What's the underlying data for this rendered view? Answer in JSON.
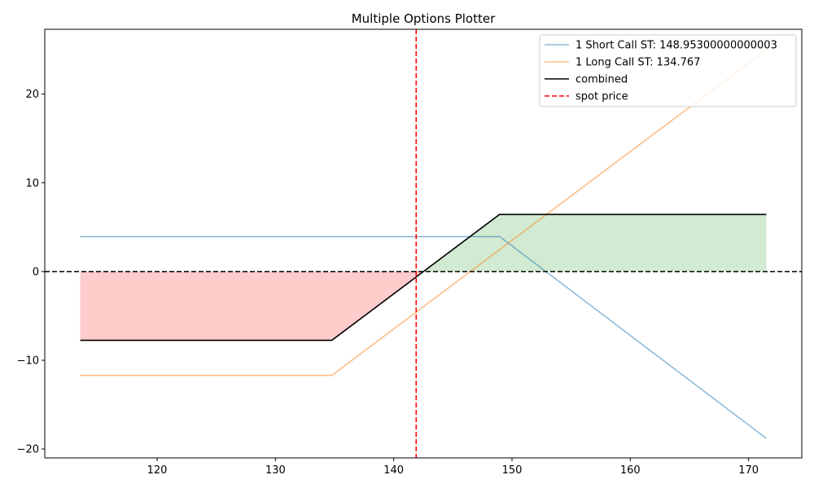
{
  "chart_data": {
    "type": "line",
    "title": "Multiple Options Plotter",
    "xlabel": "",
    "ylabel": "",
    "xlim": [
      110.5,
      174.5
    ],
    "ylim": [
      -21,
      27.3
    ],
    "x_ticks": [
      120,
      130,
      140,
      150,
      160,
      170
    ],
    "y_ticks": [
      -20,
      -10,
      0,
      10,
      20
    ],
    "grid": false,
    "legend_position": "top-right",
    "series": [
      {
        "name": "1 Short Call ST: 148.95300000000003",
        "color": "#1f77b4",
        "opacity": 0.5,
        "dash": "solid",
        "x": [
          113.5,
          148.953,
          171.5
        ],
        "y": [
          3.95,
          3.95,
          -18.8
        ]
      },
      {
        "name": "1 Long Call ST: 134.767",
        "color": "#ff7f0e",
        "opacity": 0.5,
        "dash": "solid",
        "x": [
          113.5,
          134.767,
          171.5
        ],
        "y": [
          -11.7,
          -11.7,
          25.0
        ]
      },
      {
        "name": "combined",
        "color": "#000000",
        "opacity": 1,
        "dash": "solid",
        "x": [
          113.5,
          134.767,
          148.953,
          171.5
        ],
        "y": [
          -7.75,
          -7.75,
          6.44,
          6.44
        ]
      }
    ],
    "reference_lines": [
      {
        "name": "spot price",
        "orientation": "vertical",
        "value": 141.9,
        "color": "#ff0000",
        "dash": "dashed",
        "in_legend": true
      },
      {
        "name": "zero",
        "orientation": "horizontal",
        "value": 0,
        "color": "#000000",
        "dash": "dashed",
        "in_legend": false
      }
    ],
    "fills": [
      {
        "region": "loss",
        "color": "#ff0000",
        "opacity": 0.2,
        "x": [
          113.5,
          134.767,
          142.54
        ],
        "y": [
          -7.75,
          -7.75,
          0
        ]
      },
      {
        "region": "profit",
        "color": "#2ca02c",
        "opacity": 0.22,
        "x": [
          142.54,
          148.953,
          171.5
        ],
        "y": [
          0,
          6.44,
          6.44
        ]
      }
    ]
  }
}
